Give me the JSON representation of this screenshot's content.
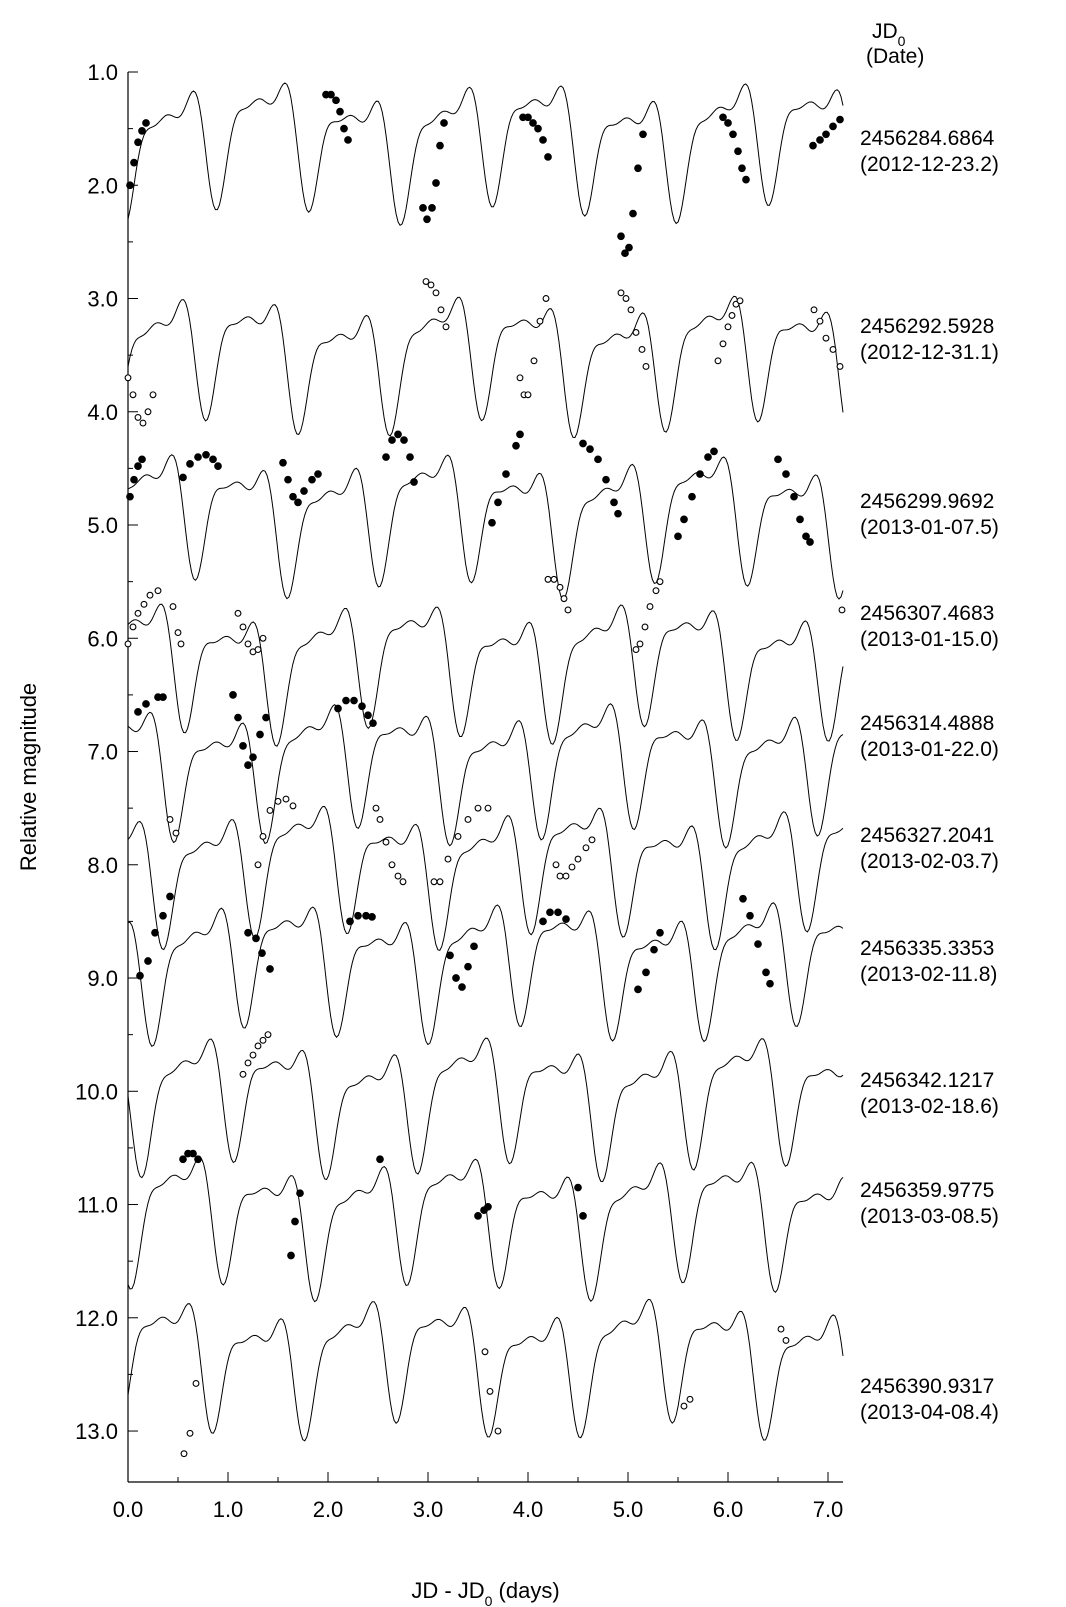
{
  "chart_data": {
    "type": "line",
    "title": "",
    "xlabel": "JD - JD",
    "xlabel_sub": "0",
    "xlabel_unit": "(days)",
    "ylabel": "Relative magnitude",
    "xlim": [
      0.0,
      7.15
    ],
    "ylim": [
      1.0,
      13.45
    ],
    "y_inverted": true,
    "x_ticks": [
      "0.0",
      "1.0",
      "2.0",
      "3.0",
      "4.0",
      "5.0",
      "6.0",
      "7.0"
    ],
    "y_ticks": [
      "1.0",
      "2.0",
      "3.0",
      "4.0",
      "5.0",
      "6.0",
      "7.0",
      "8.0",
      "9.0",
      "10.0",
      "11.0",
      "12.0",
      "13.0"
    ],
    "legend_header": {
      "line1": "JD",
      "line1_sub": "0",
      "line2": "(Date)"
    },
    "grid": false,
    "model_period_days": 0.92,
    "series": [
      {
        "jd0": "2456284.6864",
        "date": "(2012-12-23.2)",
        "offset": 1.0,
        "marker": "filled",
        "points": [
          [
            0.02,
            2.0
          ],
          [
            0.06,
            1.8
          ],
          [
            0.1,
            1.62
          ],
          [
            0.14,
            1.52
          ],
          [
            0.18,
            1.45
          ],
          [
            1.98,
            1.2
          ],
          [
            2.03,
            1.2
          ],
          [
            2.08,
            1.25
          ],
          [
            2.12,
            1.35
          ],
          [
            2.16,
            1.5
          ],
          [
            2.2,
            1.6
          ],
          [
            2.95,
            2.2
          ],
          [
            2.99,
            2.3
          ],
          [
            3.04,
            2.2
          ],
          [
            3.08,
            1.98
          ],
          [
            3.12,
            1.65
          ],
          [
            3.16,
            1.45
          ],
          [
            3.95,
            1.4
          ],
          [
            4.0,
            1.4
          ],
          [
            4.05,
            1.45
          ],
          [
            4.1,
            1.5
          ],
          [
            4.15,
            1.6
          ],
          [
            4.2,
            1.75
          ],
          [
            4.93,
            2.45
          ],
          [
            4.97,
            2.6
          ],
          [
            5.01,
            2.55
          ],
          [
            5.05,
            2.25
          ],
          [
            5.1,
            1.85
          ],
          [
            5.15,
            1.55
          ],
          [
            5.95,
            1.4
          ],
          [
            6.0,
            1.45
          ],
          [
            6.05,
            1.55
          ],
          [
            6.1,
            1.7
          ],
          [
            6.14,
            1.85
          ],
          [
            6.18,
            1.95
          ],
          [
            6.85,
            1.65
          ],
          [
            6.92,
            1.6
          ],
          [
            6.98,
            1.55
          ],
          [
            7.05,
            1.48
          ],
          [
            7.12,
            1.42
          ]
        ]
      },
      {
        "jd0": "2456292.5928",
        "date": "(2012-12-31.1)",
        "offset": 2.9,
        "marker": "open",
        "points": [
          [
            0.0,
            3.7
          ],
          [
            0.05,
            3.85
          ],
          [
            0.1,
            4.05
          ],
          [
            0.15,
            4.1
          ],
          [
            0.2,
            4.0
          ],
          [
            0.25,
            3.85
          ],
          [
            2.98,
            2.85
          ],
          [
            3.03,
            2.88
          ],
          [
            3.08,
            2.95
          ],
          [
            3.13,
            3.1
          ],
          [
            3.18,
            3.25
          ],
          [
            3.92,
            3.7
          ],
          [
            3.96,
            3.85
          ],
          [
            4.0,
            3.85
          ],
          [
            4.06,
            3.55
          ],
          [
            4.12,
            3.2
          ],
          [
            4.18,
            3.0
          ],
          [
            4.93,
            2.95
          ],
          [
            4.98,
            3.0
          ],
          [
            5.03,
            3.1
          ],
          [
            5.08,
            3.3
          ],
          [
            5.14,
            3.45
          ],
          [
            5.18,
            3.6
          ],
          [
            5.9,
            3.55
          ],
          [
            5.95,
            3.4
          ],
          [
            6.0,
            3.25
          ],
          [
            6.04,
            3.15
          ],
          [
            6.08,
            3.05
          ],
          [
            6.12,
            3.02
          ],
          [
            6.86,
            3.1
          ],
          [
            6.92,
            3.2
          ],
          [
            6.98,
            3.35
          ],
          [
            7.05,
            3.45
          ],
          [
            7.12,
            3.6
          ]
        ]
      },
      {
        "jd0": "2456299.9692",
        "date": "(2013-01-07.5)",
        "offset": 4.3,
        "marker": "filled",
        "points": [
          [
            0.02,
            4.75
          ],
          [
            0.06,
            4.6
          ],
          [
            0.1,
            4.48
          ],
          [
            0.14,
            4.42
          ],
          [
            0.55,
            4.58
          ],
          [
            0.62,
            4.46
          ],
          [
            0.7,
            4.4
          ],
          [
            0.78,
            4.38
          ],
          [
            0.85,
            4.42
          ],
          [
            0.9,
            4.48
          ],
          [
            1.55,
            4.45
          ],
          [
            1.6,
            4.6
          ],
          [
            1.65,
            4.75
          ],
          [
            1.7,
            4.8
          ],
          [
            1.76,
            4.7
          ],
          [
            1.84,
            4.6
          ],
          [
            1.9,
            4.55
          ],
          [
            2.58,
            4.4
          ],
          [
            2.64,
            4.25
          ],
          [
            2.7,
            4.2
          ],
          [
            2.76,
            4.25
          ],
          [
            2.82,
            4.4
          ],
          [
            2.86,
            4.62
          ],
          [
            3.64,
            4.98
          ],
          [
            3.7,
            4.8
          ],
          [
            3.78,
            4.55
          ],
          [
            3.88,
            4.3
          ],
          [
            3.92,
            4.2
          ],
          [
            4.55,
            4.28
          ],
          [
            4.62,
            4.33
          ],
          [
            4.7,
            4.42
          ],
          [
            4.78,
            4.6
          ],
          [
            4.86,
            4.8
          ],
          [
            4.9,
            4.9
          ],
          [
            5.5,
            5.1
          ],
          [
            5.56,
            4.95
          ],
          [
            5.64,
            4.75
          ],
          [
            5.72,
            4.55
          ],
          [
            5.8,
            4.4
          ],
          [
            5.86,
            4.35
          ],
          [
            6.5,
            4.42
          ],
          [
            6.58,
            4.55
          ],
          [
            6.66,
            4.75
          ],
          [
            6.72,
            4.95
          ],
          [
            6.78,
            5.1
          ],
          [
            6.82,
            5.15
          ]
        ]
      },
      {
        "jd0": "2456307.4683",
        "date": "(2013-01-15.0)",
        "offset": 5.6,
        "marker": "open",
        "points": [
          [
            0.0,
            6.05
          ],
          [
            0.05,
            5.9
          ],
          [
            0.1,
            5.78
          ],
          [
            0.16,
            5.7
          ],
          [
            0.22,
            5.62
          ],
          [
            0.3,
            5.58
          ],
          [
            0.45,
            5.72
          ],
          [
            0.5,
            5.95
          ],
          [
            0.53,
            6.05
          ],
          [
            1.1,
            5.78
          ],
          [
            1.15,
            5.9
          ],
          [
            1.2,
            6.05
          ],
          [
            1.25,
            6.12
          ],
          [
            1.3,
            6.1
          ],
          [
            1.35,
            6.0
          ],
          [
            4.2,
            5.48
          ],
          [
            4.26,
            5.48
          ],
          [
            4.32,
            5.55
          ],
          [
            4.36,
            5.65
          ],
          [
            4.4,
            5.75
          ],
          [
            5.08,
            6.1
          ],
          [
            5.12,
            6.05
          ],
          [
            5.17,
            5.9
          ],
          [
            5.22,
            5.72
          ],
          [
            5.28,
            5.58
          ],
          [
            5.32,
            5.5
          ],
          [
            7.14,
            5.75
          ]
        ]
      },
      {
        "jd0": "2456314.4888",
        "date": "(2013-01-22.0)",
        "offset": 6.5,
        "marker": "filled",
        "points": [
          [
            0.1,
            6.65
          ],
          [
            0.18,
            6.58
          ],
          [
            0.3,
            6.52
          ],
          [
            0.35,
            6.52
          ],
          [
            1.05,
            6.5
          ],
          [
            1.1,
            6.7
          ],
          [
            1.15,
            6.95
          ],
          [
            1.2,
            7.12
          ],
          [
            1.25,
            7.05
          ],
          [
            1.32,
            6.85
          ],
          [
            1.38,
            6.7
          ],
          [
            2.1,
            6.62
          ],
          [
            2.18,
            6.55
          ],
          [
            2.26,
            6.55
          ],
          [
            2.34,
            6.6
          ],
          [
            2.4,
            6.68
          ],
          [
            2.45,
            6.75
          ]
        ]
      },
      {
        "jd0": "2456327.2041",
        "date": "(2013-02-03.7)",
        "offset": 7.4,
        "marker": "open",
        "points": [
          [
            0.42,
            7.6
          ],
          [
            0.48,
            7.72
          ],
          [
            1.3,
            8.0
          ],
          [
            1.35,
            7.75
          ],
          [
            1.42,
            7.52
          ],
          [
            1.5,
            7.44
          ],
          [
            1.58,
            7.42
          ],
          [
            1.65,
            7.48
          ],
          [
            2.48,
            7.5
          ],
          [
            2.52,
            7.6
          ],
          [
            2.58,
            7.8
          ],
          [
            2.64,
            8.0
          ],
          [
            2.7,
            8.1
          ],
          [
            2.75,
            8.15
          ],
          [
            3.06,
            8.15
          ],
          [
            3.12,
            8.15
          ],
          [
            3.2,
            7.95
          ],
          [
            3.3,
            7.75
          ],
          [
            3.4,
            7.6
          ],
          [
            3.5,
            7.5
          ],
          [
            3.6,
            7.5
          ],
          [
            4.28,
            8.0
          ],
          [
            4.32,
            8.1
          ],
          [
            4.38,
            8.1
          ],
          [
            4.44,
            8.02
          ],
          [
            4.5,
            7.95
          ],
          [
            4.58,
            7.85
          ],
          [
            4.64,
            7.78
          ]
        ]
      },
      {
        "jd0": "2456335.3353",
        "date": "(2013-02-11.8)",
        "offset": 8.25,
        "marker": "filled",
        "points": [
          [
            0.12,
            8.98
          ],
          [
            0.2,
            8.85
          ],
          [
            0.27,
            8.6
          ],
          [
            0.35,
            8.45
          ],
          [
            0.42,
            8.28
          ],
          [
            1.2,
            8.6
          ],
          [
            1.28,
            8.65
          ],
          [
            1.34,
            8.78
          ],
          [
            1.42,
            8.92
          ],
          [
            2.22,
            8.5
          ],
          [
            2.3,
            8.45
          ],
          [
            2.38,
            8.45
          ],
          [
            2.44,
            8.46
          ],
          [
            3.22,
            8.8
          ],
          [
            3.28,
            9.0
          ],
          [
            3.34,
            9.08
          ],
          [
            3.4,
            8.9
          ],
          [
            3.46,
            8.72
          ],
          [
            4.15,
            8.5
          ],
          [
            4.22,
            8.42
          ],
          [
            4.3,
            8.42
          ],
          [
            4.38,
            8.48
          ],
          [
            5.1,
            9.1
          ],
          [
            5.18,
            8.95
          ],
          [
            5.26,
            8.75
          ],
          [
            5.32,
            8.6
          ],
          [
            6.15,
            8.3
          ],
          [
            6.22,
            8.45
          ],
          [
            6.3,
            8.7
          ],
          [
            6.38,
            8.95
          ],
          [
            6.42,
            9.05
          ]
        ]
      },
      {
        "jd0": "2456342.1217",
        "date": "(2013-02-18.6)",
        "offset": 9.45,
        "marker": "open",
        "points": [
          [
            1.15,
            9.85
          ],
          [
            1.2,
            9.75
          ],
          [
            1.25,
            9.68
          ],
          [
            1.3,
            9.6
          ],
          [
            1.35,
            9.55
          ],
          [
            1.4,
            9.5
          ]
        ]
      },
      {
        "jd0": "2456359.9775",
        "date": "(2013-03-08.5)",
        "offset": 10.5,
        "marker": "filled",
        "points": [
          [
            0.55,
            10.6
          ],
          [
            0.6,
            10.55
          ],
          [
            0.65,
            10.55
          ],
          [
            0.7,
            10.6
          ],
          [
            1.63,
            11.45
          ],
          [
            1.67,
            11.15
          ],
          [
            1.72,
            10.9
          ],
          [
            2.52,
            10.6
          ],
          [
            3.5,
            11.1
          ],
          [
            3.56,
            11.05
          ],
          [
            3.6,
            11.02
          ],
          [
            4.5,
            10.85
          ],
          [
            4.55,
            11.1
          ]
        ]
      },
      {
        "jd0": "2456390.9317",
        "date": "(2013-04-08.4)",
        "offset": 11.75,
        "marker": "open",
        "points": [
          [
            0.56,
            13.2
          ],
          [
            0.62,
            13.02
          ],
          [
            0.68,
            12.58
          ],
          [
            3.57,
            12.3
          ],
          [
            3.62,
            12.65
          ],
          [
            3.7,
            13.0
          ],
          [
            5.56,
            12.78
          ],
          [
            5.62,
            12.72
          ],
          [
            6.53,
            12.1
          ],
          [
            6.58,
            12.2
          ]
        ]
      }
    ]
  }
}
